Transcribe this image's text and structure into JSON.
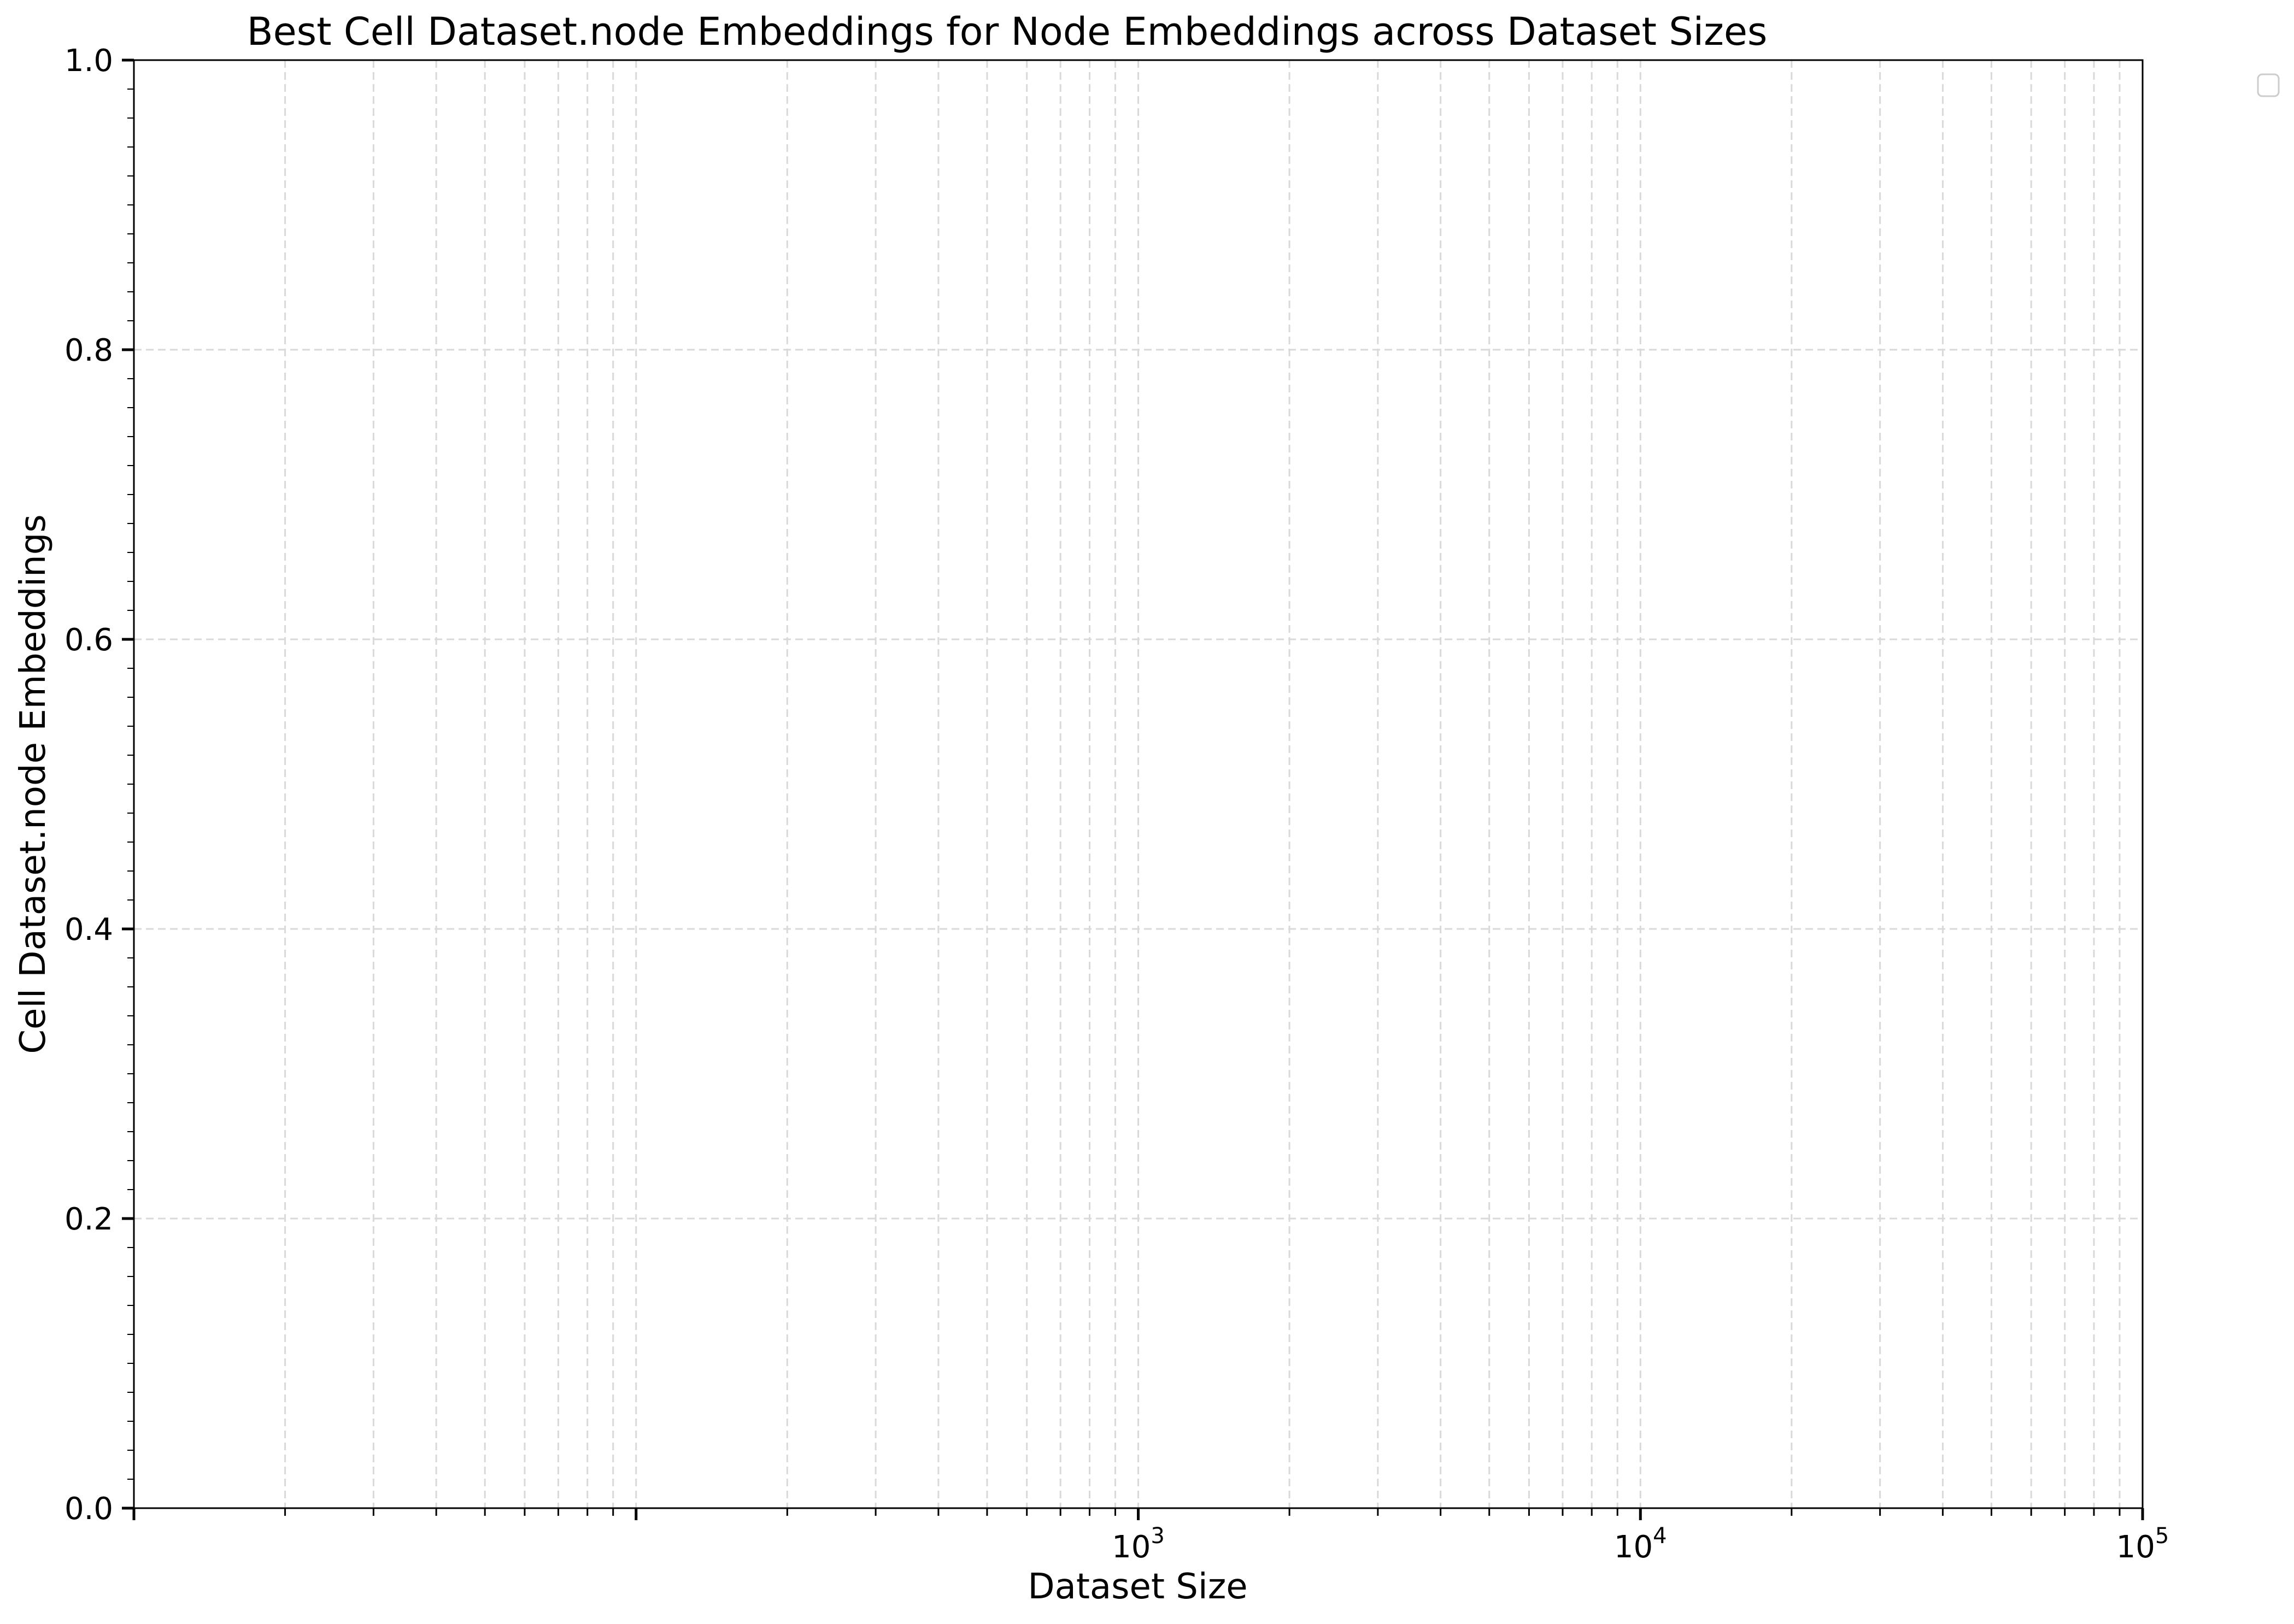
{
  "chart_data": {
    "type": "line",
    "title": "Best Cell Dataset.node Embeddings for Node Embeddings across Dataset Sizes",
    "xlabel": "Dataset Size",
    "ylabel": "Cell Dataset.node Embeddings",
    "x_scale": "log",
    "xlim": [
      10,
      100000
    ],
    "ylim": [
      0.0,
      1.0
    ],
    "x_major_ticks": [
      {
        "value": 1000,
        "base": "10",
        "exp": "3"
      },
      {
        "value": 10000,
        "base": "10",
        "exp": "4"
      },
      {
        "value": 100000,
        "base": "10",
        "exp": "5"
      }
    ],
    "y_ticks": [
      {
        "value": 0.0,
        "label": "0.0"
      },
      {
        "value": 0.2,
        "label": "0.2"
      },
      {
        "value": 0.4,
        "label": "0.4"
      },
      {
        "value": 0.6,
        "label": "0.6"
      },
      {
        "value": 0.8,
        "label": "0.8"
      },
      {
        "value": 1.0,
        "label": "1.0"
      }
    ],
    "grid": true,
    "grid_style": "dashed",
    "legend": "upper-right-outside",
    "legend_entries": [],
    "series": [],
    "colors": {
      "grid": "#d9d9d9",
      "axes": "#000000",
      "legend_border": "#cccccc"
    }
  }
}
